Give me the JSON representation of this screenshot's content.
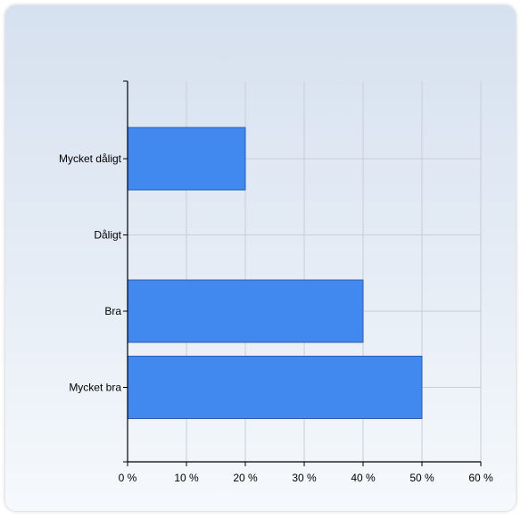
{
  "chart_data": {
    "type": "bar",
    "orientation": "horizontal",
    "categories": [
      "Mycket dåligt",
      "Dåligt",
      "Bra",
      "Mycket bra"
    ],
    "values": [
      20,
      0,
      40,
      50
    ],
    "value_unit": "%",
    "xlim": [
      0,
      60
    ],
    "x_ticks": [
      0,
      10,
      20,
      30,
      40,
      50,
      60
    ],
    "x_tick_labels": [
      "0 %",
      "10 %",
      "20 %",
      "30 %",
      "40 %",
      "50 %",
      "60 %"
    ],
    "grid": true,
    "legend": "none",
    "title": "",
    "xlabel": "",
    "ylabel": "",
    "colors": {
      "bar": "#4189ee",
      "bar_stroke": "#2a5fad",
      "grid": "#c9ced6",
      "axis": "#000000"
    }
  }
}
